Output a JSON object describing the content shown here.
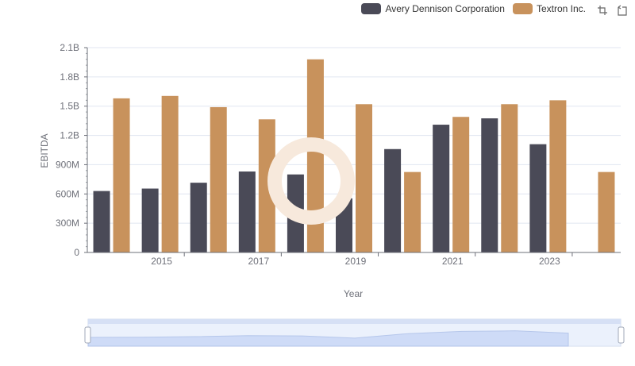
{
  "legend": {
    "items": [
      {
        "label": "Avery Dennison Corporation",
        "color": "#4a4a57"
      },
      {
        "label": "Textron Inc.",
        "color": "#c8925c"
      }
    ]
  },
  "toolbox": {
    "icons": [
      "zoom-icon",
      "restore-icon"
    ]
  },
  "chart_data": {
    "type": "bar",
    "x": [
      2014,
      2015,
      2016,
      2017,
      2018,
      2019,
      2020,
      2021,
      2022,
      2023,
      2024
    ],
    "x_tick_labels": [
      "2015",
      "2017",
      "2019",
      "2021",
      "2023"
    ],
    "series": [
      {
        "name": "Avery Dennison Corporation",
        "color": "#4a4a57",
        "values": [
          630000000,
          655000000,
          715000000,
          830000000,
          800000000,
          555000000,
          1060000000,
          1310000000,
          1375000000,
          1110000000,
          null
        ]
      },
      {
        "name": "Textron Inc.",
        "color": "#c8925c",
        "values": [
          1580000000,
          1605000000,
          1490000000,
          1365000000,
          1980000000,
          1520000000,
          825000000,
          1390000000,
          1520000000,
          1560000000,
          825000000
        ]
      }
    ],
    "xlabel": "Year",
    "ylabel": "EBITDA",
    "ylim": [
      0,
      2100000000
    ],
    "y_ticks": [
      0,
      300000000,
      600000000,
      900000000,
      1200000000,
      1500000000,
      1800000000,
      2100000000
    ],
    "y_tick_labels": [
      "0",
      "300M",
      "600M",
      "900M",
      "1.2B",
      "1.5B",
      "1.8B",
      "2.1B"
    ],
    "grid": true,
    "legend_position": "top-right",
    "data_zoom": {
      "start": 0,
      "end": 100
    }
  }
}
